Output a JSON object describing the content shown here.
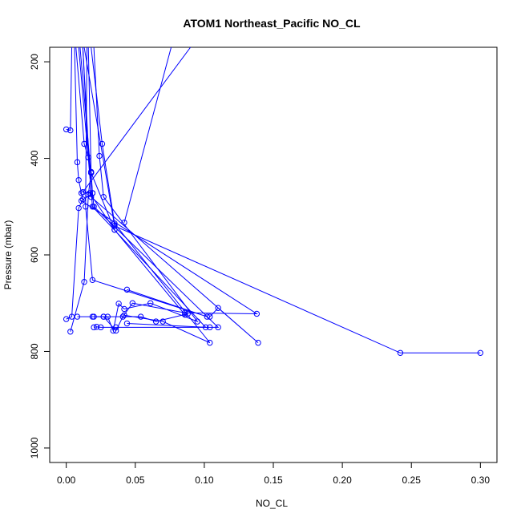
{
  "chart_data": {
    "type": "line",
    "title": "ATOM1 Northeast_Pacific NO_CL",
    "xlabel": "NO_CL",
    "ylabel": "Pressure (mbar)",
    "xlim": [
      -0.012,
      0.312
    ],
    "ylim": [
      1030,
      170
    ],
    "y_reversed": true,
    "grid": false,
    "x_ticks": [
      {
        "value": 0.0,
        "label": "0.00"
      },
      {
        "value": 0.05,
        "label": "0.05"
      },
      {
        "value": 0.1,
        "label": "0.10"
      },
      {
        "value": 0.15,
        "label": "0.15"
      },
      {
        "value": 0.2,
        "label": "0.20"
      },
      {
        "value": 0.25,
        "label": "0.25"
      },
      {
        "value": 0.3,
        "label": "0.30"
      }
    ],
    "y_ticks": [
      {
        "value": 200,
        "label": "200"
      },
      {
        "value": 400,
        "label": "400"
      },
      {
        "value": 600,
        "label": "600"
      },
      {
        "value": 800,
        "label": "800"
      },
      {
        "value": 1000,
        "label": "1000"
      }
    ],
    "colors": {
      "series": "#0000ff",
      "axis": "#000000"
    },
    "series": [
      {
        "markers": true,
        "points": [
          [
            0.0,
            733
          ],
          [
            0.004,
            728
          ],
          [
            0.009,
            503
          ],
          [
            0.012,
            485
          ],
          [
            0.011,
            472
          ],
          [
            0.009,
            445
          ],
          [
            0.008,
            408
          ],
          [
            0.006,
            170
          ]
        ]
      },
      {
        "markers": true,
        "points": [
          [
            0.003,
            759
          ],
          [
            0.013,
            656
          ],
          [
            0.016,
            475
          ],
          [
            0.018,
            430
          ],
          [
            0.016,
            398
          ],
          [
            0.013,
            370
          ],
          [
            0.007,
            170
          ]
        ]
      },
      {
        "markers": true,
        "points": [
          [
            0.008,
            728
          ],
          [
            0.019,
            728
          ],
          [
            0.027,
            728
          ],
          [
            0.036,
            757
          ],
          [
            0.041,
            728
          ],
          [
            0.048,
            700
          ],
          [
            0.086,
            720
          ],
          [
            0.138,
            722
          ],
          [
            0.011,
            488
          ],
          [
            0.019,
            472
          ],
          [
            0.018,
            428
          ],
          [
            0.016,
            398
          ],
          [
            0.012,
            170
          ]
        ]
      },
      {
        "markers": true,
        "points": [
          [
            0.02,
            750
          ],
          [
            0.022,
            749
          ],
          [
            0.025,
            750
          ],
          [
            0.036,
            750
          ],
          [
            0.104,
            750
          ],
          [
            0.11,
            750
          ],
          [
            0.02,
            500
          ],
          [
            0.019,
            472
          ],
          [
            0.01,
            170
          ]
        ]
      },
      {
        "markers": true,
        "points": [
          [
            0.03,
            728
          ],
          [
            0.034,
            757
          ],
          [
            0.038,
            701
          ],
          [
            0.042,
            712
          ],
          [
            0.061,
            700
          ],
          [
            0.095,
            738
          ],
          [
            0.027,
            480
          ],
          [
            0.024,
            395
          ],
          [
            0.02,
            170
          ]
        ]
      },
      {
        "markers": true,
        "points": [
          [
            0.02,
            728
          ],
          [
            0.027,
            728
          ],
          [
            0.054,
            728
          ],
          [
            0.065,
            738
          ],
          [
            0.088,
            722
          ],
          [
            0.086,
            724
          ],
          [
            0.035,
            548
          ],
          [
            0.018,
            430
          ],
          [
            0.016,
            170
          ]
        ]
      },
      {
        "markers": true,
        "points": [
          [
            0.0,
            340
          ],
          [
            0.003,
            342
          ],
          [
            0.004,
            170
          ]
        ]
      },
      {
        "markers": true,
        "points": [
          [
            0.042,
            725
          ],
          [
            0.07,
            738
          ],
          [
            0.104,
            782
          ],
          [
            0.035,
            535
          ],
          [
            0.026,
            370
          ],
          [
            0.018,
            170
          ]
        ]
      },
      {
        "markers": true,
        "points": [
          [
            0.3,
            803
          ],
          [
            0.242,
            803
          ],
          [
            0.035,
            540
          ],
          [
            0.013,
            170
          ]
        ]
      },
      {
        "markers": true,
        "points": [
          [
            0.104,
            728
          ],
          [
            0.11,
            710
          ],
          [
            0.139,
            782
          ],
          [
            0.018,
            480
          ],
          [
            0.012,
            170
          ]
        ]
      },
      {
        "markers": true,
        "points": [
          [
            0.044,
            672
          ],
          [
            0.102,
            728
          ],
          [
            0.019,
            652
          ],
          [
            0.014,
            500
          ],
          [
            0.015,
            170
          ]
        ]
      },
      {
        "markers": true,
        "points": [
          [
            0.044,
            742
          ],
          [
            0.101,
            750
          ],
          [
            0.019,
            500
          ],
          [
            0.009,
            170
          ]
        ]
      },
      {
        "markers": true,
        "points": [
          [
            0.042,
            533
          ],
          [
            0.076,
            170
          ]
        ]
      },
      {
        "markers": true,
        "points": [
          [
            0.035,
            548
          ],
          [
            0.017,
            472
          ],
          [
            0.012,
            470
          ],
          [
            0.09,
            170
          ]
        ]
      }
    ]
  }
}
